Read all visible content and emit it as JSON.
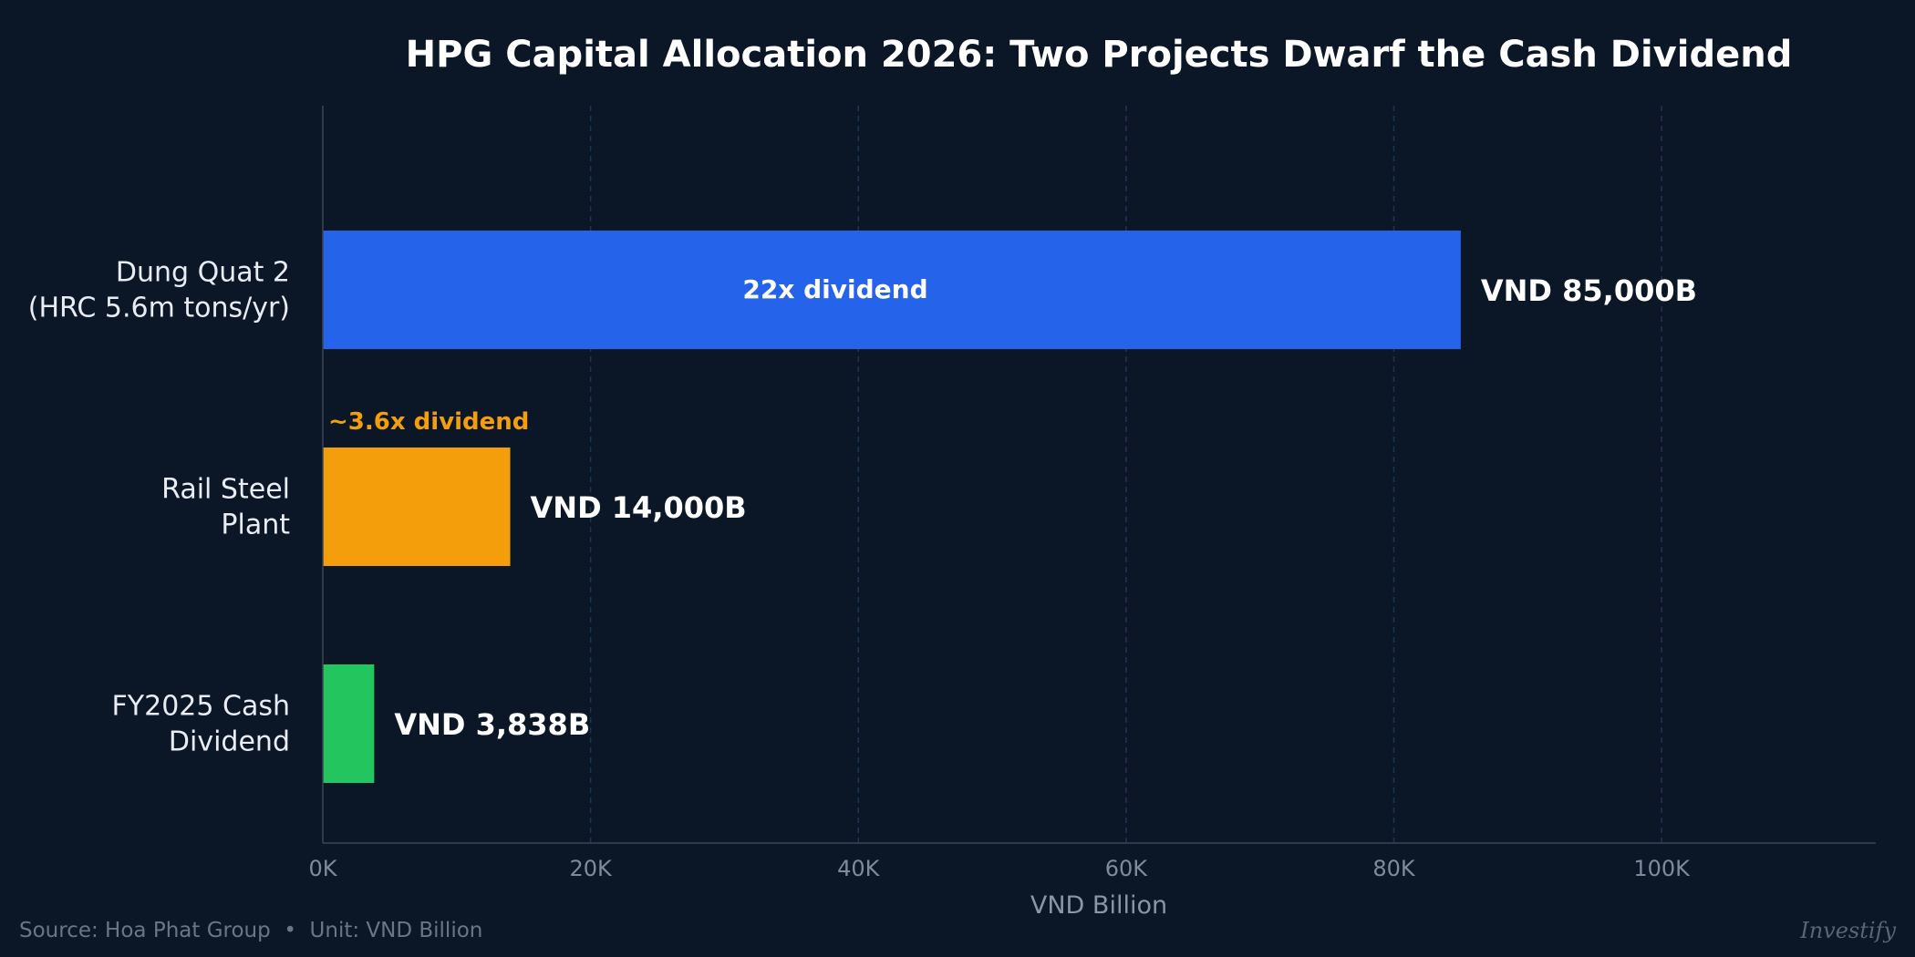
{
  "chart_data": {
    "type": "bar",
    "orientation": "horizontal",
    "title": "HPG Capital Allocation 2026: Two Projects Dwarf the Cash Dividend",
    "xlabel": "VND Billion",
    "ylabel": "",
    "xlim": [
      0,
      116000
    ],
    "xticks": [
      0,
      20000,
      40000,
      60000,
      80000,
      100000
    ],
    "xtick_labels": [
      "0K",
      "20K",
      "40K",
      "60K",
      "80K",
      "100K"
    ],
    "grid": "vertical-dashed",
    "categories": [
      {
        "lines": [
          "Dung Quat 2",
          "(HRC 5.6m tons/yr)"
        ]
      },
      {
        "lines": [
          "Rail Steel",
          "Plant"
        ]
      },
      {
        "lines": [
          "FY2025 Cash",
          "Dividend"
        ]
      }
    ],
    "values": [
      85000,
      14000,
      3838
    ],
    "colors": [
      "#2563eb",
      "#f59e0b",
      "#22c55e"
    ],
    "value_labels": [
      "VND 85,000B",
      "VND 14,000B",
      "VND 3,838B"
    ],
    "annotations": [
      {
        "bar": 0,
        "text": "22x dividend",
        "placement": "inside",
        "color": "#ffffff"
      },
      {
        "bar": 1,
        "text": "~3.6x dividend",
        "placement": "above",
        "color": "#f59e0b"
      }
    ]
  },
  "footer": {
    "source": "Source: Hoa Phat Group  •  Unit: VND Billion",
    "brand": "Investify"
  }
}
